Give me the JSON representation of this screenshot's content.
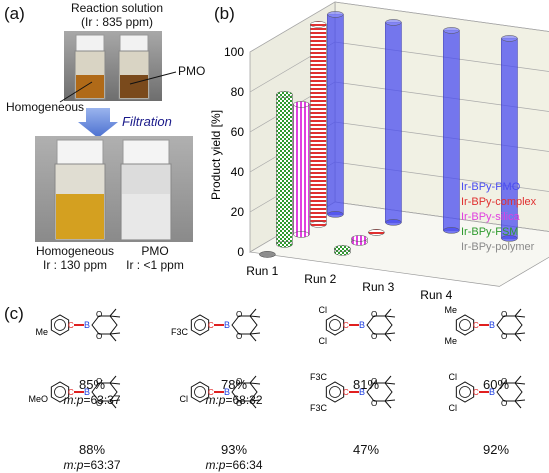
{
  "panel_a": {
    "label": "(a)",
    "reaction_title": "Reaction solution",
    "reaction_conc": "(Ir : 835 ppm)",
    "label_pmo": "PMO",
    "label_homogeneous": "Homogeneous",
    "filtration": "Filtration",
    "after_left_name": "Homogeneous",
    "after_left_conc": "Ir : 130 ppm",
    "after_right_name": "PMO",
    "after_right_conc": "Ir : <1 ppm"
  },
  "panel_b": {
    "label": "(b)"
  },
  "panel_c": {
    "label": "(c)",
    "molecules": [
      {
        "subst": "Me",
        "yield": "85%",
        "ratio_prefix": "m:p",
        "ratio": "=63:37"
      },
      {
        "subst": "F3C",
        "yield": "78%",
        "ratio_prefix": "m:p",
        "ratio": "=68:32"
      },
      {
        "subst": "Cl,Cl",
        "yield": "81%",
        "ratio_prefix": "",
        "ratio": ""
      },
      {
        "subst": "Me,Me",
        "yield": "60%",
        "ratio_prefix": "",
        "ratio": ""
      },
      {
        "subst": "MeO",
        "yield": "88%",
        "ratio_prefix": "m:p",
        "ratio": "=63:37"
      },
      {
        "subst": "Cl",
        "yield": "93%",
        "ratio_prefix": "m:p",
        "ratio": "=66:34"
      },
      {
        "subst": "F3C,F3C",
        "yield": "47%",
        "ratio_prefix": "",
        "ratio": ""
      },
      {
        "subst": "Cl,Cl",
        "yield": "92%",
        "ratio_prefix": "",
        "ratio": ""
      }
    ]
  },
  "colors": {
    "pmo": "#4a4cf0",
    "complex": "#e03030",
    "silica": "#e040e0",
    "fsm": "#2e9a2e",
    "polymer": "#8a8a8a"
  },
  "chart_data": {
    "type": "bar",
    "categories": [
      "Run 1",
      "Run 2",
      "Run 3",
      "Run 4"
    ],
    "ylabel": "Product yield  [%]",
    "ylim": [
      0,
      100
    ],
    "yticks": [
      0,
      20,
      40,
      60,
      80,
      100
    ],
    "grid": true,
    "legend_position": "right",
    "series": [
      {
        "name": "Ir-BPy-PMO",
        "values": [
          100,
          100,
          100,
          100
        ]
      },
      {
        "name": "Ir-BPy-complex",
        "values": [
          100,
          0,
          null,
          null
        ]
      },
      {
        "name": "Ir-BPy-silica",
        "values": [
          65,
          2,
          null,
          null
        ]
      },
      {
        "name": "Ir-BPy-FSM",
        "values": [
          75,
          2,
          null,
          null
        ]
      },
      {
        "name": "Ir-BPy-polymer",
        "values": [
          0,
          null,
          null,
          null
        ]
      }
    ]
  }
}
